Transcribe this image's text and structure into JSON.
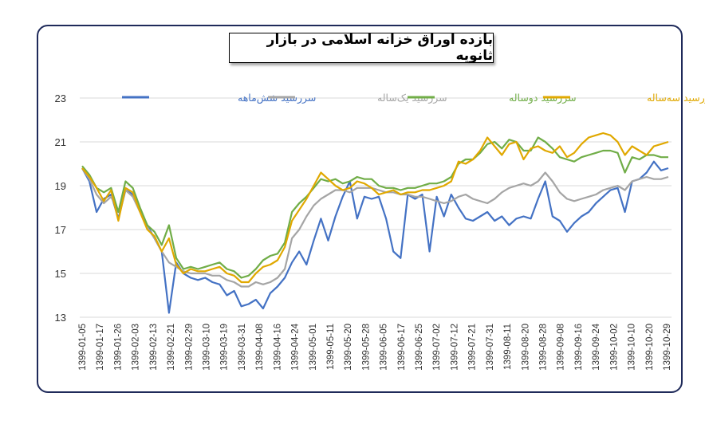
{
  "chart_data": {
    "type": "line",
    "title": "بازده اوراق خزانه اسلامی در بازار ثانویه",
    "ylim": [
      13,
      23
    ],
    "yticks": [
      13,
      15,
      17,
      19,
      21,
      23
    ],
    "grid": true,
    "legend_position": "top",
    "x_tick_labels": [
      "1399-01-05",
      "1399-01-17",
      "1399-01-26",
      "1399-02-03",
      "1399-02-13",
      "1399-02-21",
      "1399-02-29",
      "1399-03-10",
      "1399-03-19",
      "1399-03-31",
      "1399-04-08",
      "1399-04-16",
      "1399-04-24",
      "1399-05-01",
      "1399-05-11",
      "1399-05-20",
      "1399-05-28",
      "1399-06-05",
      "1399-06-17",
      "1399-06-25",
      "1399-07-02",
      "1399-07-12",
      "1399-07-21",
      "1399-07-31",
      "1399-08-11",
      "1399-08-20",
      "1399-08-28",
      "1399-09-08",
      "1399-09-16",
      "1399-09-24",
      "1399-10-02",
      "1399-10-10",
      "1399-10-20",
      "1399-10-29"
    ],
    "series": [
      {
        "name": "سررسید شش‌ماهه",
        "color": "#4472c4",
        "values": [
          19.8,
          19.2,
          17.8,
          18.4,
          18.6,
          17.5,
          18.8,
          18.6,
          17.9,
          17.2,
          16.6,
          16.0,
          13.2,
          15.5,
          15.0,
          14.8,
          14.7,
          14.8,
          14.6,
          14.5,
          14.0,
          14.2,
          13.5,
          13.6,
          13.8,
          13.4,
          14.1,
          14.4,
          14.8,
          15.5,
          16.0,
          15.4,
          16.5,
          17.5,
          16.5,
          17.6,
          18.5,
          19.2,
          17.5,
          18.5,
          18.4,
          18.5,
          17.5,
          16.0,
          15.7,
          18.6,
          18.4,
          18.6,
          16.0,
          18.5,
          17.6,
          18.6,
          18.0,
          17.5,
          17.4,
          17.6,
          17.8,
          17.4,
          17.6,
          17.2,
          17.5,
          17.6,
          17.5,
          18.4,
          19.2,
          17.6,
          17.4,
          16.9,
          17.3,
          17.6,
          17.8,
          18.2,
          18.5,
          18.8,
          18.9,
          17.8,
          19.2,
          19.3,
          19.6,
          20.1,
          19.7,
          19.8
        ]
      },
      {
        "name": "سررسید یک‌ساله",
        "color": "#a5a5a5",
        "values": [
          19.8,
          19.3,
          18.6,
          18.2,
          18.5,
          17.8,
          18.8,
          18.5,
          17.8,
          17.1,
          16.6,
          16.0,
          15.5,
          15.3,
          15.1,
          15.0,
          15.0,
          15.0,
          14.9,
          14.9,
          14.7,
          14.6,
          14.4,
          14.4,
          14.6,
          14.5,
          14.6,
          14.8,
          15.2,
          16.6,
          17.0,
          17.6,
          18.1,
          18.4,
          18.6,
          18.8,
          18.8,
          18.7,
          18.9,
          18.9,
          18.9,
          18.8,
          18.7,
          18.7,
          18.6,
          18.6,
          18.5,
          18.5,
          18.4,
          18.3,
          18.2,
          18.3,
          18.5,
          18.6,
          18.4,
          18.3,
          18.2,
          18.4,
          18.7,
          18.9,
          19.0,
          19.1,
          19.0,
          19.2,
          19.6,
          19.2,
          18.7,
          18.4,
          18.3,
          18.4,
          18.5,
          18.6,
          18.8,
          18.9,
          19.0,
          18.8,
          19.2,
          19.3,
          19.4,
          19.3,
          19.3,
          19.4
        ]
      },
      {
        "name": "سررسید دوساله",
        "color": "#70ad47",
        "values": [
          19.9,
          19.5,
          18.9,
          18.7,
          18.9,
          17.8,
          19.2,
          18.9,
          18.0,
          17.2,
          16.9,
          16.3,
          17.2,
          15.7,
          15.2,
          15.3,
          15.2,
          15.3,
          15.4,
          15.5,
          15.2,
          15.1,
          14.8,
          14.9,
          15.2,
          15.6,
          15.8,
          15.9,
          16.4,
          17.8,
          18.2,
          18.5,
          18.9,
          19.3,
          19.2,
          19.3,
          19.1,
          19.2,
          19.4,
          19.3,
          19.3,
          19.0,
          18.9,
          18.9,
          18.8,
          18.9,
          18.9,
          19.0,
          19.1,
          19.1,
          19.2,
          19.4,
          20.0,
          20.2,
          20.2,
          20.5,
          20.9,
          21.0,
          20.7,
          21.1,
          21.0,
          20.6,
          20.6,
          21.2,
          21.0,
          20.7,
          20.3,
          20.2,
          20.1,
          20.3,
          20.4,
          20.5,
          20.6,
          20.6,
          20.5,
          19.6,
          20.3,
          20.2,
          20.4,
          20.4,
          20.3,
          20.3
        ]
      },
      {
        "name": "سررسید سه‌ساله",
        "color": "#e0a800",
        "values": [
          19.8,
          19.4,
          18.9,
          18.3,
          18.8,
          17.4,
          18.9,
          18.7,
          17.8,
          17.0,
          16.7,
          16.0,
          16.6,
          15.4,
          15.0,
          15.2,
          15.1,
          15.1,
          15.2,
          15.3,
          15.0,
          14.9,
          14.6,
          14.6,
          15.0,
          15.3,
          15.4,
          15.6,
          16.2,
          17.4,
          17.9,
          18.4,
          19.0,
          19.6,
          19.3,
          19.0,
          18.8,
          18.9,
          19.2,
          19.1,
          18.9,
          18.6,
          18.7,
          18.8,
          18.6,
          18.7,
          18.7,
          18.8,
          18.8,
          18.9,
          19.0,
          19.2,
          20.1,
          20.0,
          20.2,
          20.6,
          21.2,
          20.8,
          20.4,
          20.9,
          21.0,
          20.2,
          20.7,
          20.8,
          20.6,
          20.5,
          20.8,
          20.3,
          20.5,
          20.9,
          21.2,
          21.3,
          21.4,
          21.3,
          21.0,
          20.4,
          20.8,
          20.6,
          20.4,
          20.8,
          20.9,
          21.0
        ]
      }
    ]
  }
}
